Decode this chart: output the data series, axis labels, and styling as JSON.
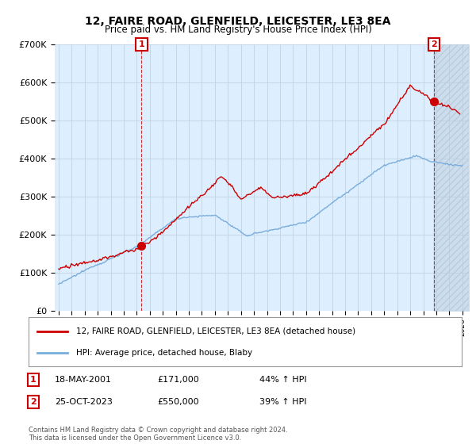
{
  "title": "12, FAIRE ROAD, GLENFIELD, LEICESTER, LE3 8EA",
  "subtitle": "Price paid vs. HM Land Registry's House Price Index (HPI)",
  "ylim": [
    0,
    700000
  ],
  "yticks": [
    0,
    100000,
    200000,
    300000,
    400000,
    500000,
    600000,
    700000
  ],
  "ytick_labels": [
    "£0",
    "£100K",
    "£200K",
    "£300K",
    "£400K",
    "£500K",
    "£600K",
    "£700K"
  ],
  "xlim_start": 1994.7,
  "xlim_end": 2026.5,
  "sale1_x": 2001.37,
  "sale1_y": 171000,
  "sale1_label": "1",
  "sale1_date": "18-MAY-2001",
  "sale1_price": "£171,000",
  "sale1_hpi": "44% ↑ HPI",
  "sale2_x": 2023.81,
  "sale2_y": 550000,
  "sale2_label": "2",
  "sale2_date": "25-OCT-2023",
  "sale2_price": "£550,000",
  "sale2_hpi": "39% ↑ HPI",
  "red_color": "#cc0000",
  "blue_color": "#7aaddb",
  "bg_chart": "#ddeeff",
  "bg_hatch": "#ccddee",
  "dashed_red": "#cc0000",
  "background_color": "#ffffff",
  "grid_color": "#bbccdd",
  "legend_label_red": "12, FAIRE ROAD, GLENFIELD, LEICESTER, LE3 8EA (detached house)",
  "legend_label_blue": "HPI: Average price, detached house, Blaby",
  "footer": "Contains HM Land Registry data © Crown copyright and database right 2024.\nThis data is licensed under the Open Government Licence v3.0."
}
